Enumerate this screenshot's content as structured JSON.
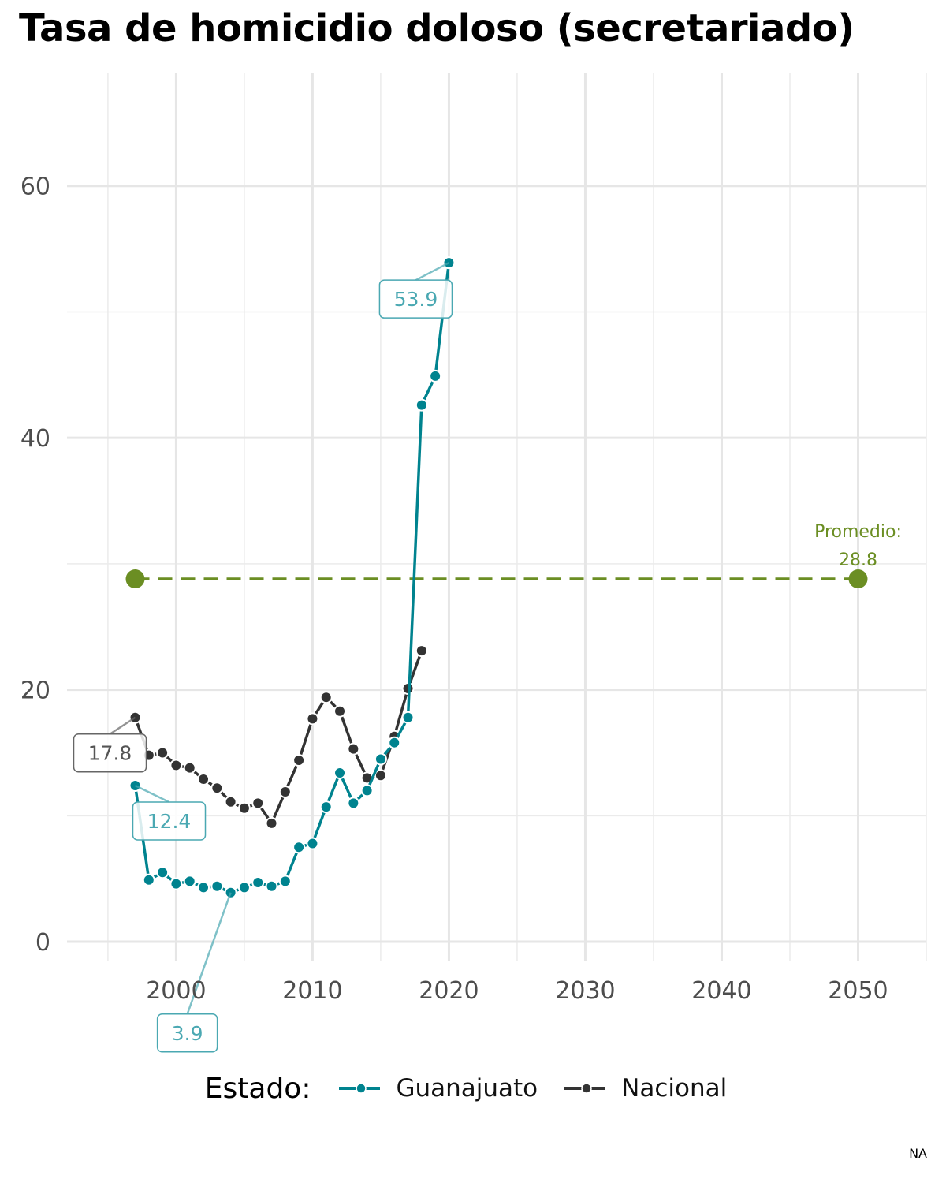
{
  "chart_data": {
    "type": "line",
    "title": "Tasa de homicidio doloso (secretariado)",
    "xlabel": "",
    "ylabel": "",
    "xlim": [
      1992,
      2055
    ],
    "ylim": [
      -1.5,
      69
    ],
    "x_ticks": [
      2000,
      2010,
      2020,
      2030,
      2040,
      2050
    ],
    "y_ticks": [
      0,
      20,
      40,
      60
    ],
    "grid": true,
    "legend": {
      "title": "Estado:",
      "position": "bottom"
    },
    "series": [
      {
        "name": "Guanajuato",
        "color": "#00838f",
        "x": [
          1997,
          1998,
          1999,
          2000,
          2001,
          2002,
          2003,
          2004,
          2005,
          2006,
          2007,
          2008,
          2009,
          2010,
          2011,
          2012,
          2013,
          2014,
          2015,
          2016,
          2017,
          2018,
          2019,
          2020
        ],
        "y": [
          12.4,
          4.9,
          5.5,
          4.6,
          4.8,
          4.3,
          4.4,
          3.9,
          4.3,
          4.7,
          4.4,
          4.8,
          7.5,
          7.8,
          10.7,
          13.4,
          11.0,
          12.0,
          14.5,
          15.8,
          17.8,
          42.6,
          44.9,
          53.9
        ]
      },
      {
        "name": "Nacional",
        "color": "#333333",
        "x": [
          1997,
          1998,
          1999,
          2000,
          2001,
          2002,
          2003,
          2004,
          2005,
          2006,
          2007,
          2008,
          2009,
          2010,
          2011,
          2012,
          2013,
          2014,
          2015,
          2016,
          2017,
          2018
        ],
        "y": [
          17.8,
          14.8,
          15.0,
          14.0,
          13.8,
          12.9,
          12.2,
          11.1,
          10.6,
          11.0,
          9.4,
          11.9,
          14.4,
          17.7,
          19.4,
          18.3,
          15.3,
          13.0,
          13.2,
          16.3,
          20.1,
          23.1
        ]
      }
    ],
    "reference_line": {
      "color": "#6b8e23",
      "value": 28.8,
      "x_start": 1997,
      "x_end": 2050,
      "label_line1": "Promedio:",
      "label_line2": "28.8"
    },
    "annotations": [
      {
        "series": "Nacional",
        "x": 1997,
        "y": 17.8,
        "text": "17.8"
      },
      {
        "series": "Guanajuato",
        "x": 1997,
        "y": 12.4,
        "text": "12.4"
      },
      {
        "series": "Guanajuato",
        "x": 2004,
        "y": 3.9,
        "text": "3.9"
      },
      {
        "series": "Guanajuato",
        "x": 2020,
        "y": 53.9,
        "text": "53.9"
      }
    ],
    "caption": "NA"
  }
}
